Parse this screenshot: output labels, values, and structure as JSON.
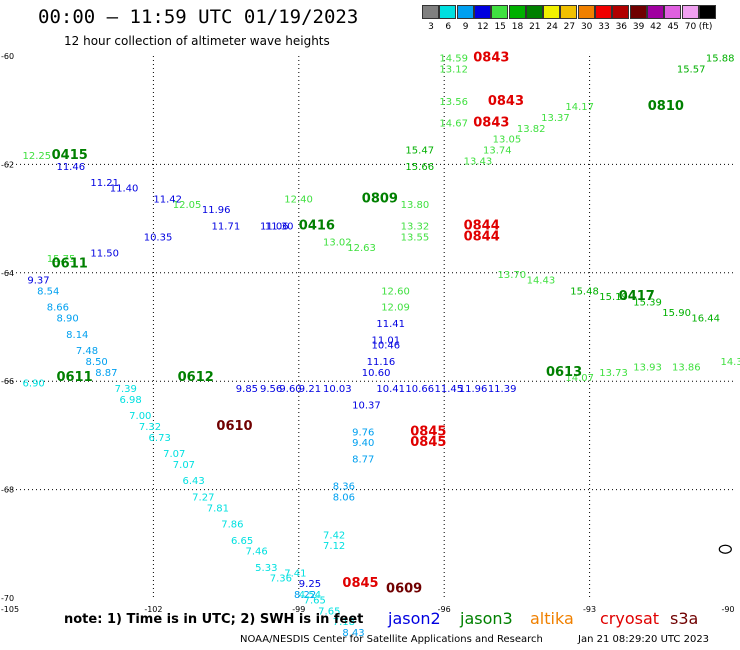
{
  "header": {
    "title": "00:00 – 11:59 UTC 01/19/2023",
    "subtitle": "12 hour collection of altimeter wave heights"
  },
  "colorbar": {
    "unit": "(ft)",
    "bins": [
      {
        "label": "3",
        "color": "#808080"
      },
      {
        "label": "6",
        "color": "#00e0e0"
      },
      {
        "label": "9",
        "color": "#00a0f0"
      },
      {
        "label": "12",
        "color": "#0000e0"
      },
      {
        "label": "15",
        "color": "#40e040"
      },
      {
        "label": "18",
        "color": "#00b000"
      },
      {
        "label": "21",
        "color": "#008000"
      },
      {
        "label": "24",
        "color": "#f0f000"
      },
      {
        "label": "27",
        "color": "#f0c000"
      },
      {
        "label": "30",
        "color": "#f08000"
      },
      {
        "label": "33",
        "color": "#f00000"
      },
      {
        "label": "36",
        "color": "#b00000"
      },
      {
        "label": "39",
        "color": "#700000"
      },
      {
        "label": "42",
        "color": "#a000a0"
      },
      {
        "label": "45",
        "color": "#e060e0"
      },
      {
        "label": "70",
        "color": "#f0a0f0"
      },
      {
        "label": "",
        "color": "#000000"
      }
    ]
  },
  "map": {
    "lon_ticks": [
      "-105",
      "-102",
      "-99",
      "-96",
      "-93",
      "-90"
    ],
    "lat_ticks": [
      "-60",
      "-62",
      "-64",
      "-66",
      "-68",
      "-70"
    ],
    "lon_range": [
      -105,
      -90
    ],
    "lat_range": [
      -70,
      -60
    ],
    "grid": true,
    "times": [
      {
        "text": "0843",
        "lon": -95.4,
        "lat": -60.1,
        "color": "#e00000"
      },
      {
        "text": "0843",
        "lon": -95.1,
        "lat": -60.9,
        "color": "#e00000"
      },
      {
        "text": "0843",
        "lon": -95.4,
        "lat": -61.3,
        "color": "#e00000"
      },
      {
        "text": "0844",
        "lon": -95.6,
        "lat": -63.2,
        "color": "#e00000"
      },
      {
        "text": "0844",
        "lon": -95.6,
        "lat": -63.4,
        "color": "#e00000"
      },
      {
        "text": "0845",
        "lon": -96.7,
        "lat": -67.0,
        "color": "#e00000"
      },
      {
        "text": "0845",
        "lon": -96.7,
        "lat": -67.2,
        "color": "#e00000"
      },
      {
        "text": "0845",
        "lon": -98.1,
        "lat": -69.8,
        "color": "#e00000"
      },
      {
        "text": "0810",
        "lon": -91.8,
        "lat": -61.0,
        "color": "#008000"
      },
      {
        "text": "0809",
        "lon": -97.7,
        "lat": -62.7,
        "color": "#008000"
      },
      {
        "text": "0415",
        "lon": -104.1,
        "lat": -61.9,
        "color": "#008000"
      },
      {
        "text": "0416",
        "lon": -99.0,
        "lat": -63.2,
        "color": "#008000"
      },
      {
        "text": "0417",
        "lon": -92.4,
        "lat": -64.5,
        "color": "#008000"
      },
      {
        "text": "0613",
        "lon": -93.9,
        "lat": -65.9,
        "color": "#008000"
      },
      {
        "text": "0612",
        "lon": -101.5,
        "lat": -66.0,
        "color": "#008000"
      },
      {
        "text": "0611",
        "lon": -104.0,
        "lat": -66.0,
        "color": "#008000"
      },
      {
        "text": "0611",
        "lon": -104.1,
        "lat": -63.9,
        "color": "#008000"
      },
      {
        "text": "0610",
        "lon": -100.7,
        "lat": -66.9,
        "color": "#700000"
      },
      {
        "text": "0609",
        "lon": -97.2,
        "lat": -69.9,
        "color": "#700000"
      }
    ],
    "values": [
      {
        "text": "14.59",
        "lon": -96.1,
        "lat": -60.1,
        "color": "#40e040"
      },
      {
        "text": "13.12",
        "lon": -96.1,
        "lat": -60.3,
        "color": "#40e040"
      },
      {
        "text": "13.56",
        "lon": -96.1,
        "lat": -60.9,
        "color": "#40e040"
      },
      {
        "text": "14.67",
        "lon": -96.1,
        "lat": -61.3,
        "color": "#40e040"
      },
      {
        "text": "15.47",
        "lon": -96.8,
        "lat": -61.8,
        "color": "#00b000"
      },
      {
        "text": "15.66",
        "lon": -96.8,
        "lat": -62.1,
        "color": "#00b000"
      },
      {
        "text": "13.80",
        "lon": -96.9,
        "lat": -62.8,
        "color": "#40e040"
      },
      {
        "text": "13.32",
        "lon": -96.9,
        "lat": -63.2,
        "color": "#40e040"
      },
      {
        "text": "13.55",
        "lon": -96.9,
        "lat": -63.4,
        "color": "#40e040"
      },
      {
        "text": "12.60",
        "lon": -97.3,
        "lat": -64.4,
        "color": "#40e040"
      },
      {
        "text": "12.09",
        "lon": -97.3,
        "lat": -64.7,
        "color": "#40e040"
      },
      {
        "text": "11.41",
        "lon": -97.4,
        "lat": -65.0,
        "color": "#0000e0"
      },
      {
        "text": "11.01",
        "lon": -97.5,
        "lat": -65.3,
        "color": "#0000e0"
      },
      {
        "text": "10.46",
        "lon": -97.5,
        "lat": -65.4,
        "color": "#0000e0"
      },
      {
        "text": "11.16",
        "lon": -97.6,
        "lat": -65.7,
        "color": "#0000e0"
      },
      {
        "text": "10.60",
        "lon": -97.7,
        "lat": -65.9,
        "color": "#0000e0"
      },
      {
        "text": "10.37",
        "lon": -97.9,
        "lat": -66.5,
        "color": "#0000e0"
      },
      {
        "text": "9.76",
        "lon": -97.9,
        "lat": -67.0,
        "color": "#00a0f0"
      },
      {
        "text": "9.40",
        "lon": -97.9,
        "lat": -67.2,
        "color": "#00a0f0"
      },
      {
        "text": "8.77",
        "lon": -97.9,
        "lat": -67.5,
        "color": "#00a0f0"
      },
      {
        "text": "8.36",
        "lon": -98.3,
        "lat": -68.0,
        "color": "#00a0f0"
      },
      {
        "text": "8.06",
        "lon": -98.3,
        "lat": -68.2,
        "color": "#00a0f0"
      },
      {
        "text": "7.42",
        "lon": -98.5,
        "lat": -68.9,
        "color": "#00e0e0"
      },
      {
        "text": "7.12",
        "lon": -98.5,
        "lat": -69.1,
        "color": "#00e0e0"
      },
      {
        "text": "9.25",
        "lon": -99.0,
        "lat": -69.8,
        "color": "#0000e0"
      },
      {
        "text": "4.54",
        "lon": -99.0,
        "lat": -70.0,
        "color": "#00e0e0"
      },
      {
        "text": "11.46",
        "lon": -104.0,
        "lat": -62.1,
        "color": "#0000e0"
      },
      {
        "text": "11.21",
        "lon": -103.3,
        "lat": -62.4,
        "color": "#0000e0"
      },
      {
        "text": "11.40",
        "lon": -102.9,
        "lat": -62.5,
        "color": "#0000e0"
      },
      {
        "text": "11.42",
        "lon": -102.0,
        "lat": -62.7,
        "color": "#0000e0"
      },
      {
        "text": "11.96",
        "lon": -101.0,
        "lat": -62.9,
        "color": "#0000e0"
      },
      {
        "text": "11.71",
        "lon": -100.8,
        "lat": -63.2,
        "color": "#0000e0"
      },
      {
        "text": "11.06",
        "lon": -99.8,
        "lat": -63.2,
        "color": "#0000e0"
      },
      {
        "text": "11.30",
        "lon": -99.7,
        "lat": -63.2,
        "color": "#0000e0"
      },
      {
        "text": "10.35",
        "lon": -102.2,
        "lat": -63.4,
        "color": "#0000e0"
      },
      {
        "text": "11.50",
        "lon": -103.3,
        "lat": -63.7,
        "color": "#0000e0"
      },
      {
        "text": "9.37",
        "lon": -104.6,
        "lat": -64.2,
        "color": "#0000e0"
      },
      {
        "text": "8.54",
        "lon": -104.4,
        "lat": -64.4,
        "color": "#00a0f0"
      },
      {
        "text": "8.66",
        "lon": -104.2,
        "lat": -64.7,
        "color": "#00a0f0"
      },
      {
        "text": "8.90",
        "lon": -104.0,
        "lat": -64.9,
        "color": "#00a0f0"
      },
      {
        "text": "8.14",
        "lon": -103.8,
        "lat": -65.2,
        "color": "#00a0f0"
      },
      {
        "text": "7.48",
        "lon": -103.6,
        "lat": -65.5,
        "color": "#00a0f0"
      },
      {
        "text": "8.50",
        "lon": -103.4,
        "lat": -65.7,
        "color": "#00a0f0"
      },
      {
        "text": "8.87",
        "lon": -103.2,
        "lat": -65.9,
        "color": "#00a0f0"
      },
      {
        "text": "7.39",
        "lon": -102.8,
        "lat": -66.2,
        "color": "#00e0e0"
      },
      {
        "text": "6.98",
        "lon": -102.7,
        "lat": -66.4,
        "color": "#00e0e0"
      },
      {
        "text": "7.00",
        "lon": -102.5,
        "lat": -66.7,
        "color": "#00e0e0"
      },
      {
        "text": "7.32",
        "lon": -102.3,
        "lat": -66.9,
        "color": "#00e0e0"
      },
      {
        "text": "6.73",
        "lon": -102.1,
        "lat": -67.1,
        "color": "#00e0e0"
      },
      {
        "text": "7.07",
        "lon": -101.8,
        "lat": -67.4,
        "color": "#00e0e0"
      },
      {
        "text": "7.07",
        "lon": -101.6,
        "lat": -67.6,
        "color": "#00e0e0"
      },
      {
        "text": "6.43",
        "lon": -101.4,
        "lat": -67.9,
        "color": "#00e0e0"
      },
      {
        "text": "7.27",
        "lon": -101.2,
        "lat": -68.2,
        "color": "#00e0e0"
      },
      {
        "text": "7.81",
        "lon": -100.9,
        "lat": -68.4,
        "color": "#00e0e0"
      },
      {
        "text": "7.86",
        "lon": -100.6,
        "lat": -68.7,
        "color": "#00e0e0"
      },
      {
        "text": "6.65",
        "lon": -100.4,
        "lat": -69.0,
        "color": "#00e0e0"
      },
      {
        "text": "7.46",
        "lon": -100.1,
        "lat": -69.2,
        "color": "#00e0e0"
      },
      {
        "text": "5.33",
        "lon": -99.9,
        "lat": -69.5,
        "color": "#00e0e0"
      },
      {
        "text": "7.36",
        "lon": -99.6,
        "lat": -69.7,
        "color": "#00e0e0"
      },
      {
        "text": "7.41",
        "lon": -99.3,
        "lat": -69.6,
        "color": "#00e0e0"
      },
      {
        "text": "8.22",
        "lon": -99.1,
        "lat": -70.0,
        "color": "#00a0f0"
      },
      {
        "text": "7.65",
        "lon": -98.9,
        "lat": -70.1,
        "color": "#00e0e0"
      },
      {
        "text": "7.65",
        "lon": -98.6,
        "lat": -70.3,
        "color": "#00e0e0"
      },
      {
        "text": "7.18",
        "lon": -98.3,
        "lat": -70.5,
        "color": "#00e0e0"
      },
      {
        "text": "8.43",
        "lon": -98.1,
        "lat": -70.7,
        "color": "#00a0f0"
      },
      {
        "text": "9.85",
        "lon": -100.3,
        "lat": -66.2,
        "color": "#0000e0"
      },
      {
        "text": "9.56",
        "lon": -99.8,
        "lat": -66.2,
        "color": "#0000e0"
      },
      {
        "text": "9.60",
        "lon": -99.4,
        "lat": -66.2,
        "color": "#0000e0"
      },
      {
        "text": "9.21",
        "lon": -99.0,
        "lat": -66.2,
        "color": "#0000e0"
      },
      {
        "text": "10.03",
        "lon": -98.5,
        "lat": -66.2,
        "color": "#0000e0"
      },
      {
        "text": "10.41",
        "lon": -97.4,
        "lat": -66.2,
        "color": "#0000e0"
      },
      {
        "text": "10.66",
        "lon": -96.8,
        "lat": -66.2,
        "color": "#0000e0"
      },
      {
        "text": "11.45",
        "lon": -96.2,
        "lat": -66.2,
        "color": "#0000e0"
      },
      {
        "text": "11.96",
        "lon": -95.7,
        "lat": -66.2,
        "color": "#0000e0"
      },
      {
        "text": "11.39",
        "lon": -95.1,
        "lat": -66.2,
        "color": "#0000e0"
      },
      {
        "text": "13.74",
        "lon": -95.2,
        "lat": -61.8,
        "color": "#40e040"
      },
      {
        "text": "13.43",
        "lon": -95.6,
        "lat": -62.0,
        "color": "#40e040"
      },
      {
        "text": "13.05",
        "lon": -95.0,
        "lat": -61.6,
        "color": "#40e040"
      },
      {
        "text": "13.82",
        "lon": -94.5,
        "lat": -61.4,
        "color": "#40e040"
      },
      {
        "text": "13.37",
        "lon": -94.0,
        "lat": -61.2,
        "color": "#40e040"
      },
      {
        "text": "14.17",
        "lon": -93.5,
        "lat": -61.0,
        "color": "#40e040"
      },
      {
        "text": "15.57",
        "lon": -91.2,
        "lat": -60.3,
        "color": "#00b000"
      },
      {
        "text": "15.88",
        "lon": -90.6,
        "lat": -60.1,
        "color": "#00b000"
      },
      {
        "text": "15.48",
        "lon": -93.4,
        "lat": -64.4,
        "color": "#00b000"
      },
      {
        "text": "15.19",
        "lon": -92.8,
        "lat": -64.5,
        "color": "#00b000"
      },
      {
        "text": "15.39",
        "lon": -92.1,
        "lat": -64.6,
        "color": "#00b000"
      },
      {
        "text": "15.90",
        "lon": -91.5,
        "lat": -64.8,
        "color": "#00b000"
      },
      {
        "text": "16.44",
        "lon": -90.9,
        "lat": -64.9,
        "color": "#00b000"
      },
      {
        "text": "14.43",
        "lon": -94.3,
        "lat": -64.2,
        "color": "#40e040"
      },
      {
        "text": "13.70",
        "lon": -94.9,
        "lat": -64.1,
        "color": "#40e040"
      },
      {
        "text": "13.93",
        "lon": -92.1,
        "lat": -65.8,
        "color": "#40e040"
      },
      {
        "text": "13.86",
        "lon": -91.3,
        "lat": -65.8,
        "color": "#40e040"
      },
      {
        "text": "14.35",
        "lon": -90.3,
        "lat": -65.7,
        "color": "#40e040"
      },
      {
        "text": "13.73",
        "lon": -92.8,
        "lat": -65.9,
        "color": "#40e040"
      },
      {
        "text": "14.07",
        "lon": -93.5,
        "lat": -66.0,
        "color": "#40e040"
      },
      {
        "text": "12.63",
        "lon": -98.0,
        "lat": -63.6,
        "color": "#40e040"
      },
      {
        "text": "13.02",
        "lon": -98.5,
        "lat": -63.5,
        "color": "#40e040"
      },
      {
        "text": "12.40",
        "lon": -99.3,
        "lat": -62.7,
        "color": "#40e040"
      },
      {
        "text": "12.05",
        "lon": -101.6,
        "lat": -62.8,
        "color": "#40e040"
      },
      {
        "text": "15.75",
        "lon": -104.2,
        "lat": -63.8,
        "color": "#40e040"
      },
      {
        "text": "12.25",
        "lon": -104.7,
        "lat": -61.9,
        "color": "#40e040"
      },
      {
        "text": "6.90",
        "lon": -104.7,
        "lat": -66.1,
        "color": "#00e0e0"
      }
    ],
    "island": {
      "lon": -90.2,
      "lat": -69.1
    }
  },
  "footer": {
    "note": "note:  1) Time is in UTC; 2) SWH is in feet",
    "missions": [
      {
        "name": "jason2",
        "color": "#0000e0"
      },
      {
        "name": "jason3",
        "color": "#008000"
      },
      {
        "name": "altika",
        "color": "#f08000"
      },
      {
        "name": "cryosat",
        "color": "#e00000"
      },
      {
        "name": "s3a",
        "color": "#700000"
      }
    ],
    "credit": "NOAA/NESDIS Center for Satellite Applications and Research",
    "timestamp": "Jan 21 08:29:20 UTC 2023"
  }
}
